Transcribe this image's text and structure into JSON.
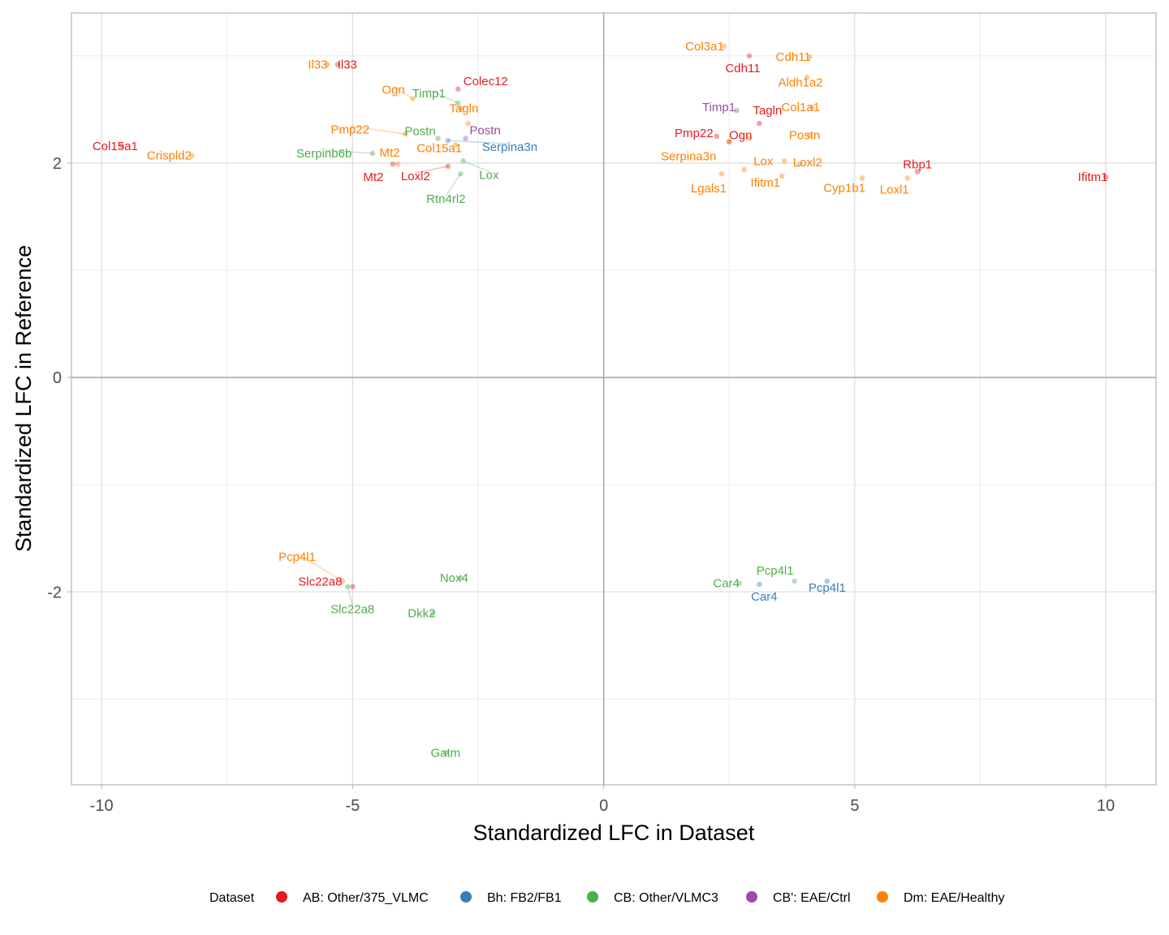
{
  "chart_data": {
    "type": "scatter",
    "xlabel": "Standardized LFC in Dataset",
    "ylabel": "Standardized LFC in Reference",
    "xlim": [
      -10.6,
      11.0
    ],
    "ylim": [
      -3.8,
      3.4
    ],
    "xticks": [
      -10,
      -5,
      0,
      5,
      10
    ],
    "yticks": [
      -2,
      0,
      2
    ],
    "grid": true,
    "legend_position": "bottom",
    "legend_title": "Dataset",
    "series": [
      {
        "name": "AB: Other/375_VLMC",
        "color": "#E41A1C",
        "points": [
          {
            "label": "Il33",
            "x": -5.3,
            "y": 2.92
          },
          {
            "label": "Colec12",
            "x": -2.9,
            "y": 2.69
          },
          {
            "label": "Col15a1",
            "x": -9.6,
            "y": 2.16
          },
          {
            "label": "Mt2",
            "x": -4.2,
            "y": 1.99
          },
          {
            "label": "Loxl2",
            "x": -3.1,
            "y": 1.97
          },
          {
            "label": "Slc22a8",
            "x": -5.0,
            "y": -1.95
          },
          {
            "label": "Cdh11",
            "x": 2.9,
            "y": 3.0
          },
          {
            "label": "Tagln",
            "x": 3.1,
            "y": 2.37
          },
          {
            "label": "Pmp22",
            "x": 2.25,
            "y": 2.25
          },
          {
            "label": "Ogn",
            "x": 2.5,
            "y": 2.2
          },
          {
            "label": "Rbp1",
            "x": 6.25,
            "y": 1.92
          },
          {
            "label": "Ifitm1",
            "x": 10.0,
            "y": 1.87
          }
        ]
      },
      {
        "name": "Bh: FB2/FB1",
        "color": "#377EB8",
        "points": [
          {
            "label": "Serpina3n",
            "x": -3.1,
            "y": 2.21
          },
          {
            "label": "Car4",
            "x": 3.1,
            "y": -1.93
          },
          {
            "label": "Pcp4l1",
            "x": 4.45,
            "y": -1.9
          }
        ]
      },
      {
        "name": "CB: Other/VLMC3",
        "color": "#4DAF4A",
        "points": [
          {
            "label": "Timp1",
            "x": -2.9,
            "y": 2.56
          },
          {
            "label": "Postn",
            "x": -3.3,
            "y": 2.23
          },
          {
            "label": "Serpinb6b",
            "x": -4.6,
            "y": 2.09
          },
          {
            "label": "Lox",
            "x": -2.8,
            "y": 2.02
          },
          {
            "label": "Rtn4rl2",
            "x": -2.85,
            "y": 1.9
          },
          {
            "label": "Slc22a8",
            "x": -5.1,
            "y": -1.95
          },
          {
            "label": "Nox4",
            "x": -2.85,
            "y": -1.87
          },
          {
            "label": "Dkk2",
            "x": -3.4,
            "y": -2.2
          },
          {
            "label": "Gatm",
            "x": -3.15,
            "y": -3.5
          },
          {
            "label": "Car4",
            "x": 2.7,
            "y": -1.92
          },
          {
            "label": "Pcp4l1",
            "x": 3.8,
            "y": -1.9
          }
        ]
      },
      {
        "name": "CB': EAE/Ctrl",
        "color": "#984EA3",
        "points": [
          {
            "label": "Postn",
            "x": -2.75,
            "y": 2.23
          },
          {
            "label": "Timp1",
            "x": 2.65,
            "y": 2.49
          }
        ]
      },
      {
        "name": "Dm: EAE/Healthy",
        "color": "#FF7F00",
        "points": [
          {
            "label": "Il33",
            "x": -5.5,
            "y": 2.92
          },
          {
            "label": "Ogn",
            "x": -3.8,
            "y": 2.6
          },
          {
            "label": "Tagln",
            "x": -2.85,
            "y": 2.51
          },
          {
            "label": "Pmp22",
            "x": -3.95,
            "y": 2.27
          },
          {
            "label": "Mt2",
            "x": -4.1,
            "y": 1.99
          },
          {
            "label": "Col15a1",
            "x": -2.95,
            "y": 2.17
          },
          {
            "label": "Crispld2",
            "x": -8.2,
            "y": 2.07
          },
          {
            "label": "",
            "x": -2.7,
            "y": 2.37
          },
          {
            "label": "Col3a1",
            "x": 2.4,
            "y": 3.09
          },
          {
            "label": "Cdh11",
            "x": 4.1,
            "y": 2.99
          },
          {
            "label": "Aldh1a2",
            "x": 4.05,
            "y": 2.8
          },
          {
            "label": "Col1a1",
            "x": 4.15,
            "y": 2.52
          },
          {
            "label": "Postn",
            "x": 4.1,
            "y": 2.26
          },
          {
            "label": "Serpina3n",
            "x": 2.5,
            "y": 2.2
          },
          {
            "label": "Lox",
            "x": 3.6,
            "y": 2.02
          },
          {
            "label": "Loxl2",
            "x": 3.9,
            "y": 1.99
          },
          {
            "label": "Lgals1",
            "x": 2.35,
            "y": 1.9
          },
          {
            "label": "Ifitm1",
            "x": 2.8,
            "y": 1.94
          },
          {
            "label": "Cyp1b1",
            "x": 5.15,
            "y": 1.86
          },
          {
            "label": "Loxl1",
            "x": 6.05,
            "y": 1.86
          },
          {
            "label": "",
            "x": 3.55,
            "y": 1.88
          },
          {
            "label": "",
            "x": 2.9,
            "y": 2.23
          },
          {
            "label": "Pcp4l1",
            "x": -5.2,
            "y": -1.9
          }
        ]
      }
    ]
  }
}
